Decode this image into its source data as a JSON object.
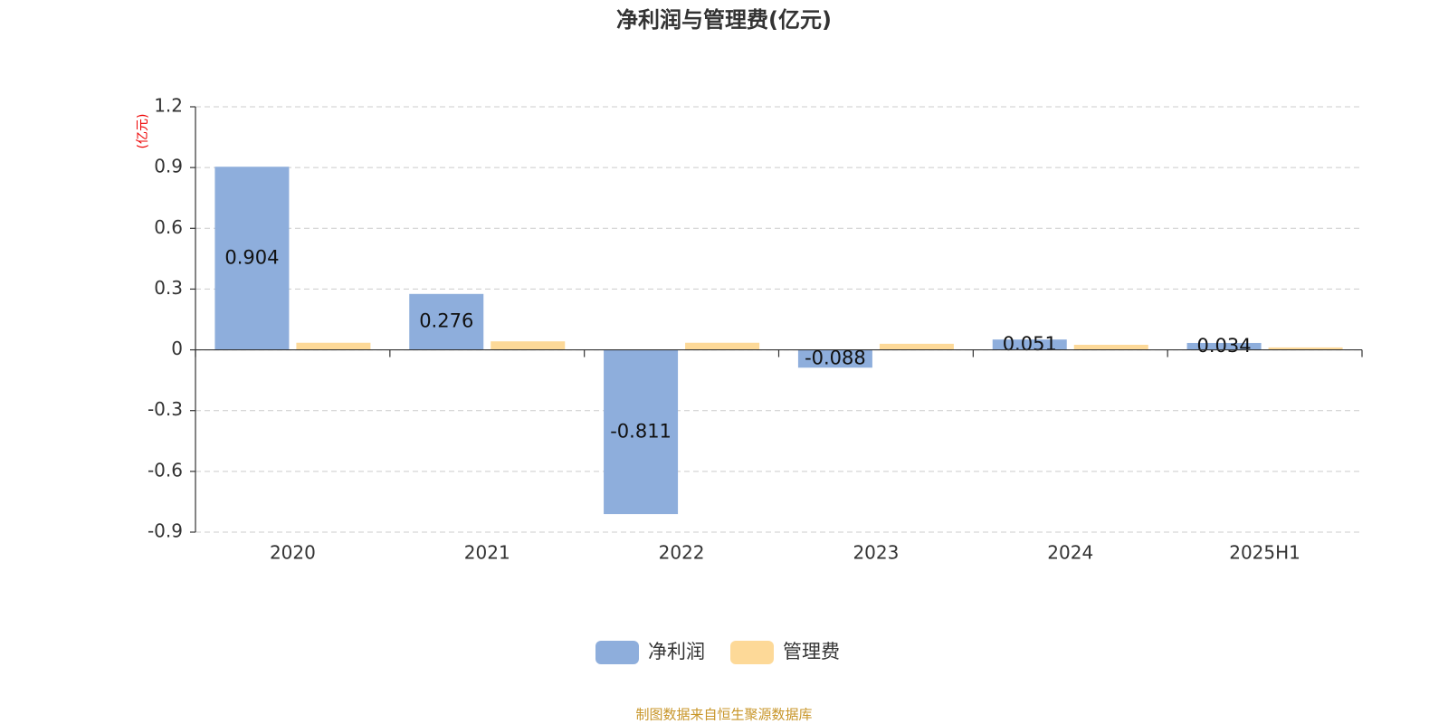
{
  "chart_data": {
    "type": "bar",
    "title": "净利润与管理费(亿元)",
    "y_label": "(亿元)",
    "source": "制图数据来自恒生聚源数据库",
    "categories": [
      "2020",
      "2021",
      "2022",
      "2023",
      "2024",
      "2025H1"
    ],
    "series": [
      {
        "name": "净利润",
        "color": "#8eaedc",
        "values": [
          0.904,
          0.276,
          -0.811,
          -0.088,
          0.051,
          0.034
        ],
        "show_labels": true
      },
      {
        "name": "管理费",
        "color": "#fdd998",
        "values": [
          0.035,
          0.042,
          0.035,
          0.03,
          0.025,
          0.012
        ],
        "show_labels": false
      }
    ],
    "ylim": [
      -0.9,
      1.2
    ],
    "yticks": [
      -0.9,
      -0.6,
      -0.3,
      0,
      0.3,
      0.6,
      0.9,
      1.2
    ],
    "grid": true,
    "legend": "bottom"
  }
}
